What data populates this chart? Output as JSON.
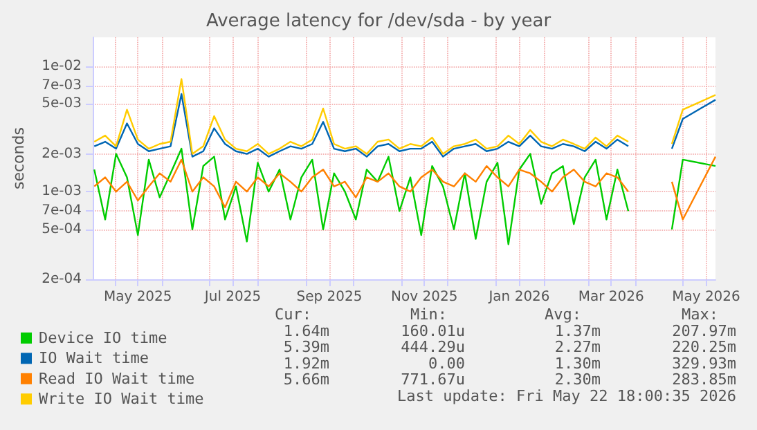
{
  "chart_data": {
    "type": "line",
    "title": "Average latency for /dev/sda - by year",
    "ylabel": "seconds",
    "log": "y",
    "grid": true,
    "legend": "bottom left",
    "marker": "none",
    "x": [
      "2025-04-18",
      "2025-04-25",
      "2025-05-02",
      "2025-05-09",
      "2025-05-16",
      "2025-05-23",
      "2025-05-30",
      "2025-06-06",
      "2025-06-13",
      "2025-06-20",
      "2025-06-27",
      "2025-07-04",
      "2025-07-11",
      "2025-07-18",
      "2025-07-25",
      "2025-08-01",
      "2025-08-08",
      "2025-08-15",
      "2025-08-22",
      "2025-08-29",
      "2025-09-05",
      "2025-09-12",
      "2025-09-19",
      "2025-09-26",
      "2025-10-03",
      "2025-10-10",
      "2025-10-17",
      "2025-10-24",
      "2025-10-31",
      "2025-11-07",
      "2025-11-14",
      "2025-11-21",
      "2025-11-28",
      "2025-12-05",
      "2025-12-12",
      "2025-12-19",
      "2025-12-26",
      "2026-01-02",
      "2026-01-09",
      "2026-01-16",
      "2026-01-23",
      "2026-01-30",
      "2026-02-06",
      "2026-02-13",
      "2026-02-20",
      "2026-02-27",
      "2026-03-06",
      "2026-03-13",
      "2026-03-20",
      "2026-03-27",
      "2026-04-03",
      "2026-04-10",
      "2026-04-17",
      "2026-04-24",
      "2026-05-01",
      "2026-05-22"
    ],
    "xlim": [
      "2025-04-17",
      "2026-05-22"
    ],
    "xticks": [
      {
        "value": "2025-05-01",
        "label": null
      },
      {
        "value": "2025-05-16",
        "label": "May 2025"
      },
      {
        "value": "2025-06-01",
        "label": null
      },
      {
        "value": "2025-07-01",
        "label": null
      },
      {
        "value": "2025-07-16",
        "label": "Jul 2025"
      },
      {
        "value": "2025-08-01",
        "label": null
      },
      {
        "value": "2025-09-01",
        "label": null
      },
      {
        "value": "2025-09-16",
        "label": "Sep 2025"
      },
      {
        "value": "2025-10-01",
        "label": null
      },
      {
        "value": "2025-11-01",
        "label": null
      },
      {
        "value": "2025-11-16",
        "label": "Nov 2025"
      },
      {
        "value": "2025-12-01",
        "label": null
      },
      {
        "value": "2026-01-01",
        "label": null
      },
      {
        "value": "2026-01-16",
        "label": "Jan 2026"
      },
      {
        "value": "2026-02-01",
        "label": null
      },
      {
        "value": "2026-03-01",
        "label": null
      },
      {
        "value": "2026-03-16",
        "label": "Mar 2026"
      },
      {
        "value": "2026-04-01",
        "label": null
      },
      {
        "value": "2026-05-01",
        "label": null
      },
      {
        "value": "2026-05-16",
        "label": "May 2026"
      }
    ],
    "ylim": [
      0.0002,
      0.017
    ],
    "yticks": [
      {
        "value": 0.0002,
        "label": "2e-04"
      },
      {
        "value": 0.0005,
        "label": "5e-04"
      },
      {
        "value": 0.0007,
        "label": "7e-04"
      },
      {
        "value": 0.001,
        "label": "1e-03"
      },
      {
        "value": 0.002,
        "label": "2e-03"
      },
      {
        "value": 0.005,
        "label": "5e-03"
      },
      {
        "value": 0.007,
        "label": "7e-03"
      },
      {
        "value": 0.01,
        "label": "1e-02"
      }
    ],
    "series": [
      {
        "name": "Device IO time",
        "color": "#00cc00",
        "values": [
          0.0015,
          0.0006,
          0.002,
          0.0013,
          0.00045,
          0.0018,
          0.0009,
          0.0014,
          0.0022,
          0.0005,
          0.0016,
          0.0019,
          0.0006,
          0.0011,
          0.0004,
          0.0017,
          0.001,
          0.0015,
          0.0006,
          0.0013,
          0.0018,
          0.0005,
          0.0014,
          0.001,
          0.0006,
          0.0015,
          0.0012,
          0.0019,
          0.0007,
          0.0013,
          0.00045,
          0.0016,
          0.0011,
          0.0005,
          0.0014,
          0.00042,
          0.0012,
          0.0017,
          0.00038,
          0.0015,
          0.002,
          0.0008,
          0.0014,
          0.0016,
          0.00055,
          0.0013,
          0.0018,
          0.0006,
          0.0015,
          0.0007,
          null,
          null,
          null,
          0.0005,
          0.0018,
          0.0016
        ]
      },
      {
        "name": "IO Wait time",
        "color": "#0066b3",
        "values": [
          0.0023,
          0.0025,
          0.0022,
          0.0035,
          0.0024,
          0.0021,
          0.0022,
          0.0023,
          0.006,
          0.0019,
          0.0021,
          0.0032,
          0.0024,
          0.0021,
          0.002,
          0.0022,
          0.0019,
          0.0021,
          0.0023,
          0.0022,
          0.0024,
          0.0036,
          0.0022,
          0.0021,
          0.0022,
          0.0019,
          0.0023,
          0.0024,
          0.0021,
          0.0022,
          0.0022,
          0.0025,
          0.0019,
          0.0022,
          0.0023,
          0.0024,
          0.0021,
          0.0022,
          0.0025,
          0.0023,
          0.0028,
          0.0023,
          0.0022,
          0.0024,
          0.0023,
          0.0021,
          0.0025,
          0.0022,
          0.0026,
          0.0023,
          null,
          null,
          null,
          0.0022,
          0.0038,
          0.0054
        ]
      },
      {
        "name": "Read IO Wait time",
        "color": "#ff8000",
        "values": [
          0.0011,
          0.0013,
          0.001,
          0.0012,
          0.00085,
          0.0011,
          0.0014,
          0.0012,
          0.0018,
          0.001,
          0.0013,
          0.0011,
          0.00075,
          0.0012,
          0.001,
          0.0013,
          0.0011,
          0.0014,
          0.0012,
          0.001,
          0.0013,
          0.0015,
          0.0011,
          0.0012,
          0.0009,
          0.0013,
          0.0012,
          0.0014,
          0.0011,
          0.001,
          0.0013,
          0.0015,
          0.0012,
          0.0011,
          0.0014,
          0.0012,
          0.0016,
          0.0013,
          0.0011,
          0.0015,
          0.0014,
          0.0012,
          0.001,
          0.0013,
          0.0015,
          0.0012,
          0.0011,
          0.0014,
          0.0013,
          0.001,
          null,
          null,
          null,
          0.0012,
          0.0006,
          0.0019
        ]
      },
      {
        "name": "Write IO Wait time",
        "color": "#ffcc00",
        "values": [
          0.0025,
          0.0028,
          0.0023,
          0.0045,
          0.0026,
          0.0022,
          0.0024,
          0.0025,
          0.0079,
          0.002,
          0.0023,
          0.004,
          0.0026,
          0.0022,
          0.0021,
          0.0024,
          0.002,
          0.0022,
          0.0025,
          0.0023,
          0.0026,
          0.0046,
          0.0024,
          0.0022,
          0.0023,
          0.002,
          0.0025,
          0.0026,
          0.0022,
          0.0024,
          0.0023,
          0.0027,
          0.002,
          0.0023,
          0.0024,
          0.0026,
          0.0022,
          0.0023,
          0.0028,
          0.0024,
          0.0031,
          0.0025,
          0.0023,
          0.0026,
          0.0024,
          0.0022,
          0.0027,
          0.0023,
          0.0028,
          0.0025,
          null,
          null,
          null,
          0.0024,
          0.0045,
          0.0059
        ]
      }
    ],
    "annotations": [
      "Cur:",
      "Min:",
      "Avg:",
      "Max:",
      "1.64m",
      "160.01u",
      "1.37m",
      "207.97m",
      "5.39m",
      "444.29u",
      "2.27m",
      "220.25m",
      "1.92m",
      "0.00",
      "1.30m",
      "329.93m",
      "5.66m",
      "771.67u",
      "2.30m",
      "283.85m",
      "Last update: Fri May 22 18:00:35 2026"
    ]
  }
}
